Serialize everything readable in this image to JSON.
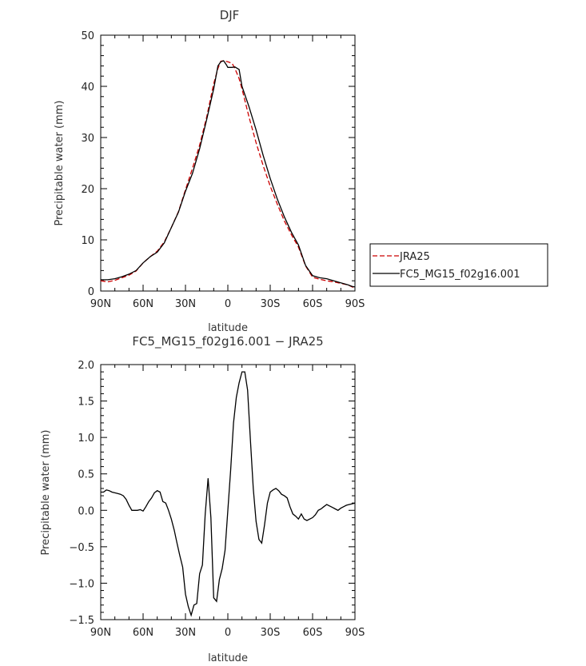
{
  "chart_data": [
    {
      "type": "line",
      "title": "DJF",
      "xlabel": "latitude",
      "ylabel": "Precipitable water (mm)",
      "xlim": [
        -90,
        90
      ],
      "ylim": [
        0,
        50
      ],
      "x_ticks": [
        -90,
        -60,
        -30,
        0,
        30,
        60,
        90
      ],
      "x_tick_labels": [
        "90N",
        "60N",
        "30N",
        "0",
        "30S",
        "60S",
        "90S"
      ],
      "y_ticks": [
        0,
        10,
        20,
        30,
        40,
        50
      ],
      "y_tick_labels": [
        "0",
        "10",
        "20",
        "30",
        "40",
        "50"
      ],
      "legend": "outside-right",
      "series": [
        {
          "name": "JRA25",
          "color": "#cc0000",
          "dash": "dashed",
          "x": [
            -90,
            -85,
            -80,
            -75,
            -70,
            -65,
            -60,
            -55,
            -50,
            -45,
            -40,
            -35,
            -30,
            -25,
            -20,
            -15,
            -10,
            -7,
            -5,
            -3,
            0,
            3,
            5,
            8,
            10,
            15,
            20,
            25,
            30,
            35,
            40,
            45,
            50,
            55,
            60,
            65,
            70,
            75,
            80,
            85,
            88,
            90
          ],
          "y": [
            2.0,
            1.8,
            2.1,
            2.6,
            3.1,
            3.9,
            5.5,
            6.7,
            7.8,
            9.6,
            12.4,
            15.5,
            19.8,
            24.0,
            28.5,
            34.0,
            40.5,
            43.5,
            44.9,
            45.0,
            44.8,
            44.5,
            43.5,
            41.5,
            39.5,
            34.0,
            29.0,
            24.5,
            20.5,
            17.0,
            13.7,
            11.0,
            8.6,
            4.9,
            2.7,
            2.3,
            2.0,
            1.8,
            1.5,
            1.2,
            0.8,
            0.7
          ]
        },
        {
          "name": "FC5_MG15_f02g16.001",
          "color": "#000000",
          "dash": "solid",
          "x": [
            -90,
            -85,
            -80,
            -75,
            -70,
            -65,
            -60,
            -55,
            -50,
            -45,
            -40,
            -35,
            -30,
            -25,
            -20,
            -15,
            -10,
            -7,
            -5,
            -3,
            -1,
            0,
            3,
            5,
            8,
            10,
            15,
            20,
            25,
            30,
            35,
            40,
            45,
            50,
            55,
            60,
            65,
            70,
            75,
            80,
            85,
            88,
            90
          ],
          "y": [
            2.2,
            2.2,
            2.4,
            2.8,
            3.3,
            4.0,
            5.5,
            6.7,
            7.6,
            9.4,
            12.4,
            15.4,
            19.5,
            23.0,
            27.8,
            33.5,
            39.5,
            44.0,
            44.8,
            45.0,
            44.2,
            43.7,
            43.7,
            43.8,
            43.3,
            40.0,
            36.0,
            31.5,
            26.5,
            22.0,
            18.0,
            14.5,
            11.5,
            9.0,
            5.0,
            3.0,
            2.6,
            2.4,
            2.0,
            1.6,
            1.2,
            0.9,
            0.8
          ]
        }
      ]
    },
    {
      "type": "line",
      "title": "FC5_MG15_f02g16.001 − JRA25",
      "xlabel": "latitude",
      "ylabel": "Precipitable water (mm)",
      "xlim": [
        -90,
        90
      ],
      "ylim": [
        -1.5,
        2.0
      ],
      "x_ticks": [
        -90,
        -60,
        -30,
        0,
        30,
        60,
        90
      ],
      "x_tick_labels": [
        "90N",
        "60N",
        "30N",
        "0",
        "30S",
        "60S",
        "90S"
      ],
      "y_ticks": [
        -1.5,
        -1.0,
        -0.5,
        0.0,
        0.5,
        1.0,
        1.5,
        2.0
      ],
      "y_tick_labels": [
        "−1.5",
        "−1.0",
        "−0.5",
        "0.0",
        "0.5",
        "1.0",
        "1.5",
        "2.0"
      ],
      "series": [
        {
          "color": "#000000",
          "x": [
            -90,
            -88,
            -86,
            -84,
            -82,
            -80,
            -78,
            -76,
            -74,
            -72,
            -70,
            -68,
            -66,
            -64,
            -62,
            -60,
            -58,
            -56,
            -54,
            -52,
            -50,
            -48,
            -46,
            -44,
            -42,
            -40,
            -38,
            -36,
            -34,
            -32,
            -30,
            -28,
            -26,
            -24,
            -22,
            -20,
            -18,
            -16,
            -14,
            -12,
            -10,
            -8,
            -6,
            -4,
            -2,
            0,
            2,
            4,
            6,
            8,
            10,
            12,
            14,
            16,
            18,
            20,
            22,
            24,
            26,
            28,
            30,
            32,
            34,
            36,
            38,
            40,
            42,
            44,
            46,
            48,
            50,
            52,
            54,
            56,
            58,
            60,
            62,
            64,
            66,
            68,
            70,
            72,
            74,
            76,
            78,
            80,
            82,
            84,
            86,
            88,
            90
          ],
          "y": [
            0.25,
            0.25,
            0.28,
            0.27,
            0.25,
            0.24,
            0.23,
            0.22,
            0.2,
            0.15,
            0.07,
            0.0,
            0.0,
            0.0,
            0.01,
            -0.01,
            0.05,
            0.12,
            0.17,
            0.24,
            0.27,
            0.25,
            0.12,
            0.1,
            0.0,
            -0.12,
            -0.27,
            -0.45,
            -0.62,
            -0.78,
            -1.15,
            -1.32,
            -1.44,
            -1.3,
            -1.28,
            -0.87,
            -0.75,
            -0.05,
            0.44,
            -0.1,
            -1.2,
            -1.25,
            -0.95,
            -0.8,
            -0.55,
            0.0,
            0.55,
            1.2,
            1.55,
            1.75,
            1.9,
            1.9,
            1.65,
            0.95,
            0.3,
            -0.15,
            -0.4,
            -0.45,
            -0.2,
            0.1,
            0.25,
            0.28,
            0.3,
            0.27,
            0.22,
            0.2,
            0.17,
            0.05,
            -0.05,
            -0.08,
            -0.12,
            -0.05,
            -0.12,
            -0.14,
            -0.12,
            -0.1,
            -0.06,
            0.0,
            0.02,
            0.05,
            0.08,
            0.06,
            0.04,
            0.02,
            0.0,
            0.03,
            0.05,
            0.07,
            0.08,
            0.09,
            0.1
          ]
        }
      ]
    }
  ]
}
